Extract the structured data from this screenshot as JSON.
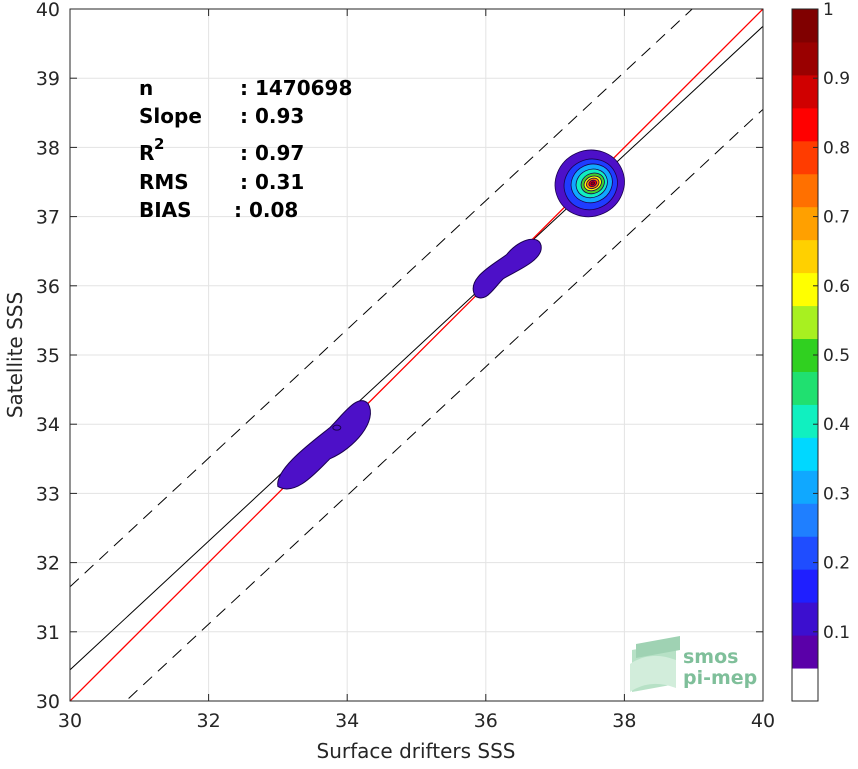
{
  "chart_data": {
    "type": "scatter",
    "subtype": "density-contour",
    "xlabel": "Surface drifters SSS",
    "ylabel": "Satellite SSS",
    "xlim": [
      30,
      40
    ],
    "ylim": [
      30,
      40
    ],
    "x_ticks": [
      30,
      32,
      34,
      36,
      38,
      40
    ],
    "y_ticks": [
      30,
      31,
      32,
      33,
      34,
      35,
      36,
      37,
      38,
      39,
      40
    ],
    "grid": true,
    "stats": {
      "n_label": "n",
      "n_value": ": 1470698",
      "slope_label": "Slope",
      "slope_value": ": 0.93",
      "r2_label": "R",
      "r2_sup": "2",
      "r2_value": ": 0.97",
      "rms_label": "RMS",
      "rms_value": ": 0.31",
      "bias_label": "BIAS",
      "bias_value": ": 0.08"
    },
    "lines": {
      "identity": {
        "slope": 1,
        "intercept": 0,
        "color": "#ff0000"
      },
      "regression": {
        "slope": 0.93,
        "intercept": 2.55,
        "color": "#000000"
      },
      "bounds_dashed": {
        "offset": 1.2,
        "color": "#000000"
      }
    },
    "density_clusters": [
      {
        "center": [
          37.5,
          37.48
        ],
        "max_level": 1.0
      },
      {
        "center": [
          36.3,
          36.25
        ],
        "max_level": 0.1
      },
      {
        "center": [
          33.65,
          33.75
        ],
        "max_level": 0.1
      }
    ],
    "colorbar": {
      "range": [
        0,
        1
      ],
      "ticks": [
        "0.1",
        "0.2",
        "0.3",
        "0.4",
        "0.5",
        "0.6",
        "0.7",
        "0.8",
        "0.9",
        "1"
      ],
      "colors": [
        "#ffffff",
        "#5a00a8",
        "#3c0fcf",
        "#1f1fff",
        "#1f4dff",
        "#1f7fff",
        "#10a8ff",
        "#00d8ff",
        "#10f0c0",
        "#20e070",
        "#30d020",
        "#a8f020",
        "#ffff00",
        "#ffd000",
        "#ffa000",
        "#ff7000",
        "#ff3c00",
        "#ff0000",
        "#d00000",
        "#9a0000",
        "#800000"
      ]
    },
    "logo": {
      "line1": "smos",
      "line2": "pi-mep"
    }
  }
}
